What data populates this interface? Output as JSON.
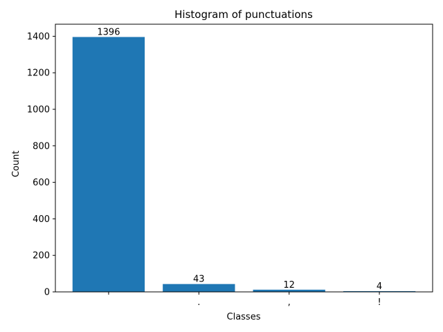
{
  "chart_data": {
    "type": "bar",
    "title": "Histogram of punctuations",
    "xlabel": "Classes",
    "ylabel": "Count",
    "categories": [
      " ",
      ".",
      ",",
      "!"
    ],
    "values": [
      1396,
      43,
      12,
      4
    ],
    "data_labels": [
      "1396",
      "43",
      "12",
      "4"
    ],
    "ylim": [
      0,
      1466
    ],
    "yticks": [
      0,
      200,
      400,
      600,
      800,
      1000,
      1200,
      1400
    ],
    "bar_color": "#1f77b4",
    "grid": false,
    "legend": "none"
  }
}
